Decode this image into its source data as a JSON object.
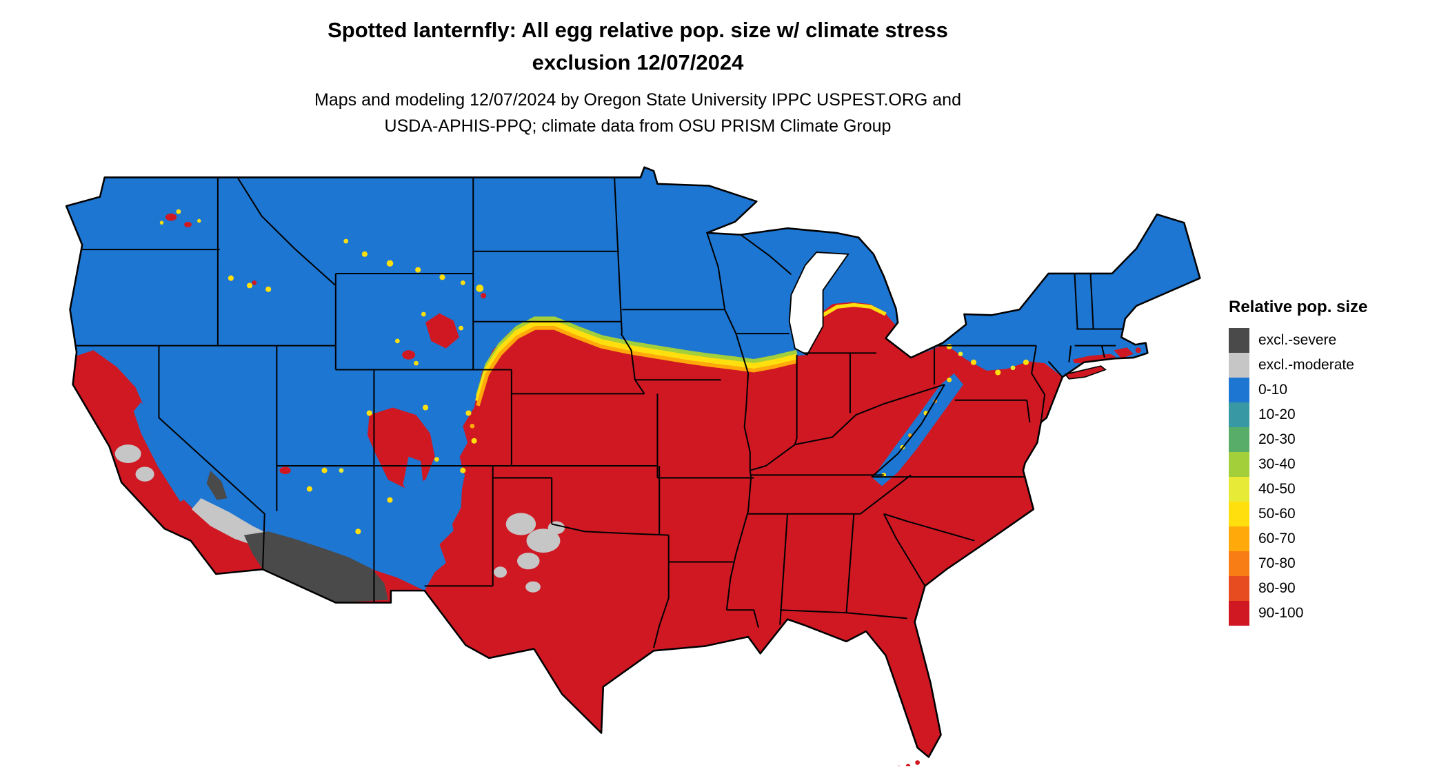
{
  "title": {
    "line1": "Spotted lanternfly: All egg relative pop. size w/ climate stress",
    "line2": "exclusion 12/07/2024"
  },
  "subtitle": {
    "line1": "Maps and modeling 12/07/2024 by Oregon State University IPPC USPEST.ORG and",
    "line2": "USDA-APHIS-PPQ; climate data from OSU PRISM Climate Group"
  },
  "legend": {
    "title": "Relative pop. size",
    "items": [
      {
        "key": "sev",
        "label": "excl.-severe"
      },
      {
        "key": "mod",
        "label": "excl.-moderate"
      },
      {
        "key": "b00",
        "label": "0-10"
      },
      {
        "key": "b10",
        "label": "10-20"
      },
      {
        "key": "b20",
        "label": "20-30"
      },
      {
        "key": "b30",
        "label": "30-40"
      },
      {
        "key": "b40",
        "label": "40-50"
      },
      {
        "key": "b50",
        "label": "50-60"
      },
      {
        "key": "b60",
        "label": "60-70"
      },
      {
        "key": "b70",
        "label": "70-80"
      },
      {
        "key": "b80",
        "label": "80-90"
      },
      {
        "key": "b90",
        "label": "90-100"
      }
    ]
  },
  "palette": {
    "sev": "#4a4a4a",
    "mod": "#c6c6c6",
    "b00": "#1d76d2",
    "b10": "#3898a4",
    "b20": "#58ad68",
    "b30": "#a3cf3a",
    "b40": "#e8ea38",
    "b50": "#ffdf0e",
    "b60": "#ffa90a",
    "b70": "#f87d15",
    "b80": "#e74b20",
    "b90": "#d01823",
    "border": "#000000",
    "water": "#ffffff"
  },
  "map": {
    "type": "choropleth-raster",
    "extent": "contiguous United States",
    "region_notes": [
      {
        "class": "0-10",
        "area": "Pacific Northwest, northern Rockies, Montana, Dakotas, Minnesota, Wisconsin, northern Michigan, northern New England, Great Basin, Sierra Nevada, Colorado Rockies, Appalachian highlands"
      },
      {
        "class": "40-70 transition band",
        "area": "central plains from Nebraska/South Dakota through northern Iowa toward the southern Great Lakes; scattered flecks in Montana, Wyoming, Idaho and around western mountain ranges"
      },
      {
        "class": "90-100",
        "area": "California coast and valleys, desert Southwest, Texas, southern Plains, entire Southeast and lower Midwest, Mid-Atlantic coast, southern New England coast"
      },
      {
        "class": "excl.-moderate",
        "area": "patches in central and southern California, west Texas and the Texas panhandle"
      },
      {
        "class": "excl.-severe",
        "area": "southern Arizona and southeastern California deserts"
      }
    ]
  }
}
